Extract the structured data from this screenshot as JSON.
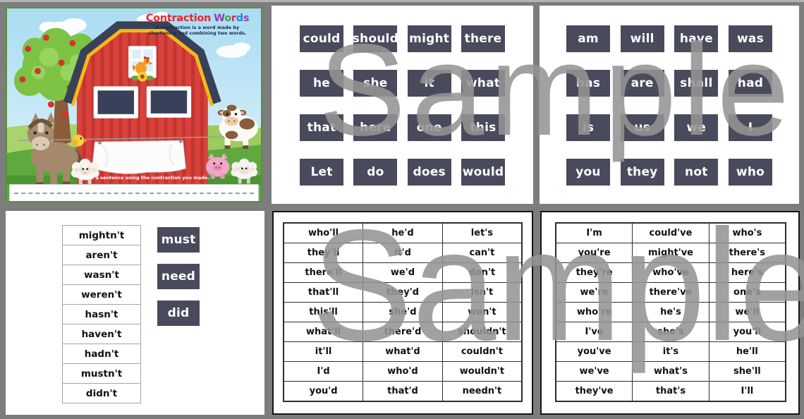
{
  "watermark": {
    "text": "Sample"
  },
  "colors": {
    "canvas_bg": "#7d7d7d",
    "panel_bg": "#ffffff",
    "tile_bg": "#494a5c",
    "tile_text": "#ffffff",
    "watermark_gray": "#949494",
    "title_red": "#e8262d",
    "subtitle_navy": "#1b2a4a",
    "barn_red": "#d9423c",
    "roof_navy": "#3a4157",
    "roof_trim_yellow": "#f5b81c",
    "grass_green": "#60a93e",
    "sky_blue": "#aadcf2",
    "table_border": "#2e2e2e"
  },
  "cover_page": {
    "title_word1": "Contraction",
    "title_word2_letters": [
      {
        "ch": "W",
        "color": "#8e44ad"
      },
      {
        "ch": "o",
        "color": "#43a047"
      },
      {
        "ch": "r",
        "color": "#e91e63"
      },
      {
        "ch": "d",
        "color": "#1e88e5"
      },
      {
        "ch": "s",
        "color": "#8e44ad"
      }
    ],
    "subtitle_line1": "A contraction is a word made by",
    "subtitle_line2": "shortening and combining two words.",
    "instruction": "Write a sentence using the contraction you made."
  },
  "word_tiles_page_1": {
    "rows": [
      [
        "could",
        "should",
        "might",
        "there"
      ],
      [
        "he",
        "she",
        "it",
        "what"
      ],
      [
        "that",
        "here",
        "one",
        "this"
      ],
      [
        "Let",
        "do",
        "does",
        "would"
      ]
    ]
  },
  "word_tiles_page_2": {
    "rows": [
      [
        "am",
        "will",
        "have",
        "was"
      ],
      [
        "has",
        "are",
        "shall",
        "had"
      ],
      [
        "is",
        "us",
        "we",
        "I"
      ],
      [
        "you",
        "they",
        "not",
        "who"
      ]
    ]
  },
  "matching_page": {
    "contraction_strips": [
      "mightn't",
      "aren't",
      "wasn't",
      "weren't",
      "hasn't",
      "haven't",
      "hadn't",
      "mustn't",
      "didn't"
    ],
    "word_tiles": [
      "must",
      "need",
      "did"
    ]
  },
  "contraction_table_1": {
    "rows": [
      [
        "who'll",
        "he'd",
        "let's"
      ],
      [
        "they'll",
        "it'd",
        "can't"
      ],
      [
        "there'll",
        "we'd",
        "don't"
      ],
      [
        "that'll",
        "they'd",
        "isn't"
      ],
      [
        "this'll",
        "she'd",
        "won't"
      ],
      [
        "what'll",
        "there'd",
        "shouldn't"
      ],
      [
        "it'll",
        "what'd",
        "couldn't"
      ],
      [
        "I'd",
        "who'd",
        "wouldn't"
      ],
      [
        "you'd",
        "that'd",
        "needn't"
      ]
    ]
  },
  "contraction_table_2": {
    "rows": [
      [
        "I'm",
        "could've",
        "who's"
      ],
      [
        "you're",
        "might've",
        "there's"
      ],
      [
        "they're",
        "who've",
        "here's"
      ],
      [
        "we're",
        "there've",
        "one's"
      ],
      [
        "who're",
        "he's",
        "we'll"
      ],
      [
        "I've",
        "she's",
        "you'll"
      ],
      [
        "you've",
        "it's",
        "he'll"
      ],
      [
        "we've",
        "what's",
        "she'll"
      ],
      [
        "they've",
        "that's",
        "I'll"
      ]
    ]
  }
}
